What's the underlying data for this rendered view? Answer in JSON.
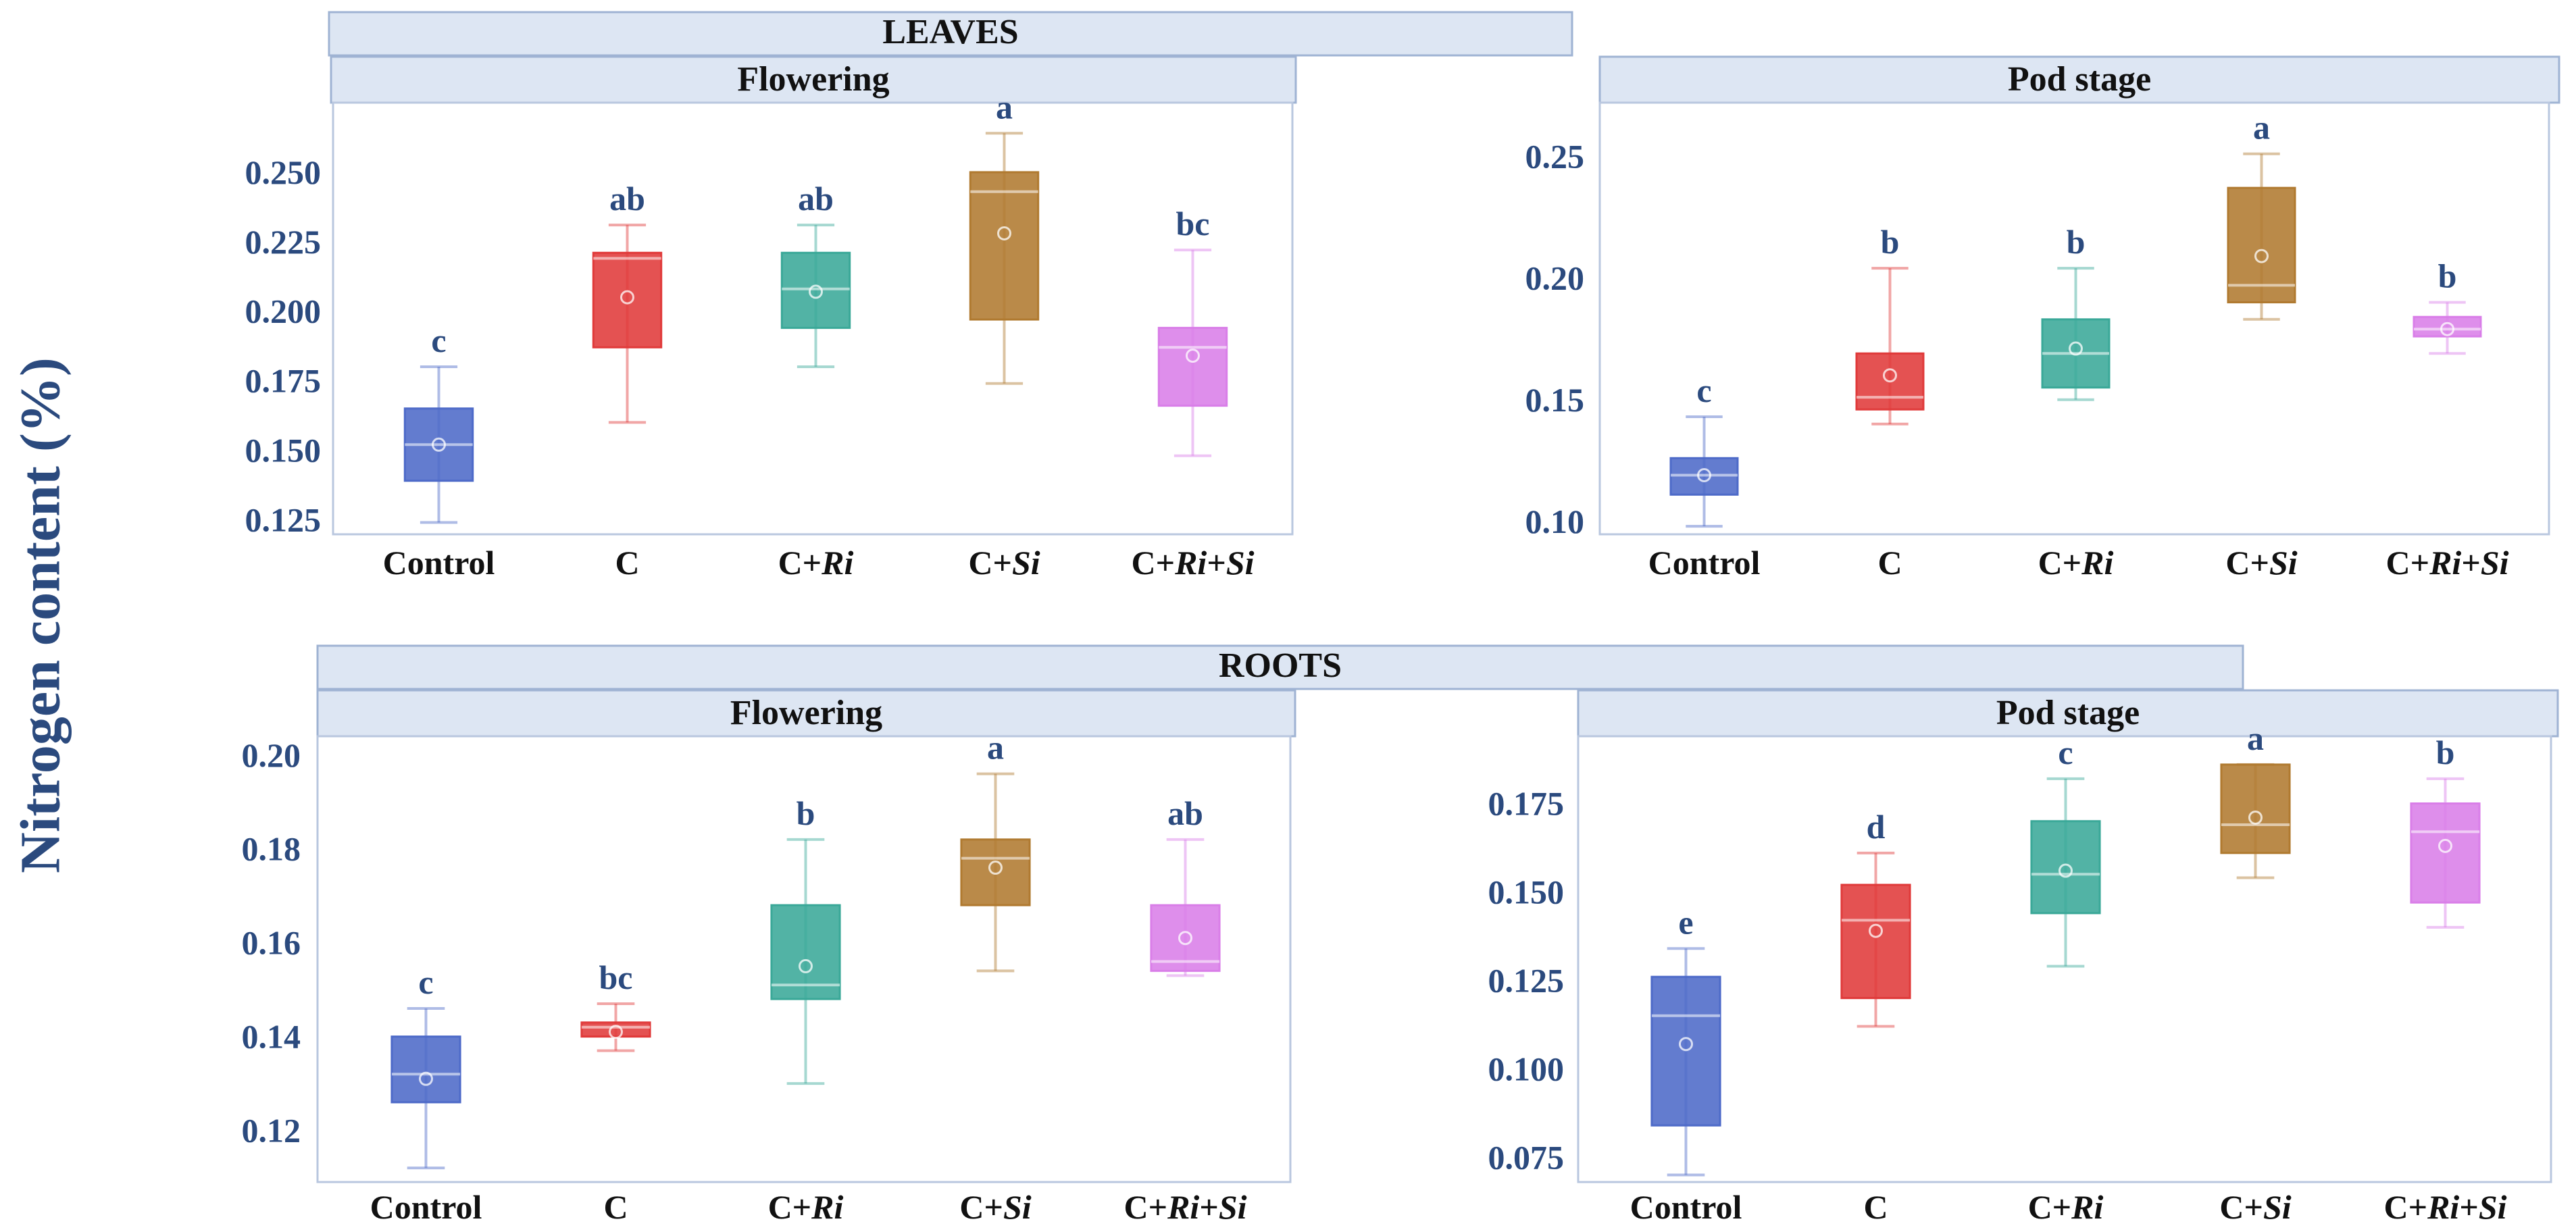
{
  "ylabel": "Nitrogen content (%)",
  "chart_data": [
    {
      "type": "box",
      "group": "LEAVES",
      "title": "Flowering",
      "categories": [
        "Control",
        "C",
        "C+Ri",
        "C+Si",
        "C+Ri+Si"
      ],
      "ylim": [
        0.12,
        0.275
      ],
      "yticks": [
        0.125,
        0.15,
        0.175,
        0.2,
        0.225,
        0.25
      ],
      "ytick_labels": [
        "0.125",
        "0.150",
        "0.175",
        "0.200",
        "0.225",
        "0.250"
      ],
      "boxes": [
        {
          "label": "Control",
          "min": 0.124,
          "q1": 0.139,
          "median": 0.152,
          "q3": 0.165,
          "max": 0.18,
          "mean": 0.152,
          "letter": "c",
          "color": "#4d6ac8"
        },
        {
          "label": "C",
          "min": 0.16,
          "q1": 0.187,
          "median": 0.219,
          "q3": 0.221,
          "max": 0.231,
          "mean": 0.205,
          "letter": "ab",
          "color": "#e03a3a"
        },
        {
          "label": "C+Ri",
          "min": 0.18,
          "q1": 0.194,
          "median": 0.208,
          "q3": 0.221,
          "max": 0.231,
          "mean": 0.207,
          "letter": "ab",
          "color": "#3aa898"
        },
        {
          "label": "C+Si",
          "min": 0.174,
          "q1": 0.197,
          "median": 0.243,
          "q3": 0.25,
          "max": 0.264,
          "mean": 0.228,
          "letter": "a",
          "color": "#b07a30"
        },
        {
          "label": "C+Ri+Si",
          "min": 0.148,
          "q1": 0.166,
          "median": 0.187,
          "q3": 0.194,
          "max": 0.222,
          "mean": 0.184,
          "letter": "bc",
          "color": "#d97ee8"
        }
      ]
    },
    {
      "type": "box",
      "group": "LEAVES",
      "title": "Pod stage",
      "categories": [
        "Control",
        "C",
        "C+Ri",
        "C+Si",
        "C+Ri+Si"
      ],
      "ylim": [
        0.095,
        0.272
      ],
      "yticks": [
        0.1,
        0.15,
        0.2,
        0.25
      ],
      "ytick_labels": [
        "0.10",
        "0.15",
        "0.20",
        "0.25"
      ],
      "boxes": [
        {
          "label": "Control",
          "min": 0.098,
          "q1": 0.111,
          "median": 0.119,
          "q3": 0.126,
          "max": 0.143,
          "mean": 0.119,
          "letter": "c",
          "color": "#4d6ac8"
        },
        {
          "label": "C",
          "min": 0.14,
          "q1": 0.146,
          "median": 0.151,
          "q3": 0.169,
          "max": 0.204,
          "mean": 0.16,
          "letter": "b",
          "color": "#e03a3a"
        },
        {
          "label": "C+Ri",
          "min": 0.15,
          "q1": 0.155,
          "median": 0.169,
          "q3": 0.183,
          "max": 0.204,
          "mean": 0.171,
          "letter": "b",
          "color": "#3aa898"
        },
        {
          "label": "C+Si",
          "min": 0.183,
          "q1": 0.19,
          "median": 0.197,
          "q3": 0.237,
          "max": 0.251,
          "mean": 0.209,
          "letter": "a",
          "color": "#b07a30"
        },
        {
          "label": "C+Ri+Si",
          "min": 0.169,
          "q1": 0.176,
          "median": 0.179,
          "q3": 0.184,
          "max": 0.19,
          "mean": 0.179,
          "letter": "b",
          "color": "#d97ee8"
        }
      ]
    },
    {
      "type": "box",
      "group": "ROOTS",
      "title": "Flowering",
      "categories": [
        "Control",
        "C",
        "C+Ri",
        "C+Si",
        "C+Ri+Si"
      ],
      "ylim": [
        0.109,
        0.204
      ],
      "yticks": [
        0.12,
        0.14,
        0.16,
        0.18,
        0.2
      ],
      "ytick_labels": [
        "0.12",
        "0.14",
        "0.16",
        "0.18",
        "0.20"
      ],
      "boxes": [
        {
          "label": "Control",
          "min": 0.112,
          "q1": 0.126,
          "median": 0.132,
          "q3": 0.14,
          "max": 0.146,
          "mean": 0.131,
          "letter": "c",
          "color": "#4d6ac8"
        },
        {
          "label": "C",
          "min": 0.137,
          "q1": 0.14,
          "median": 0.142,
          "q3": 0.143,
          "max": 0.147,
          "mean": 0.141,
          "letter": "bc",
          "color": "#e03a3a"
        },
        {
          "label": "C+Ri",
          "min": 0.13,
          "q1": 0.148,
          "median": 0.151,
          "q3": 0.168,
          "max": 0.182,
          "mean": 0.155,
          "letter": "b",
          "color": "#3aa898"
        },
        {
          "label": "C+Si",
          "min": 0.154,
          "q1": 0.168,
          "median": 0.178,
          "q3": 0.182,
          "max": 0.196,
          "mean": 0.176,
          "letter": "a",
          "color": "#b07a30"
        },
        {
          "label": "C+Ri+Si",
          "min": 0.153,
          "q1": 0.154,
          "median": 0.156,
          "q3": 0.168,
          "max": 0.182,
          "mean": 0.161,
          "letter": "ab",
          "color": "#d97ee8"
        }
      ]
    },
    {
      "type": "box",
      "group": "ROOTS",
      "title": "Pod stage",
      "categories": [
        "Control",
        "C",
        "C+Ri",
        "C+Si",
        "C+Ri+Si"
      ],
      "ylim": [
        0.068,
        0.194
      ],
      "yticks": [
        0.075,
        0.1,
        0.125,
        0.15,
        0.175
      ],
      "ytick_labels": [
        "0.075",
        "0.100",
        "0.125",
        "0.150",
        "0.175"
      ],
      "boxes": [
        {
          "label": "Control",
          "min": 0.07,
          "q1": 0.084,
          "median": 0.115,
          "q3": 0.126,
          "max": 0.134,
          "mean": 0.107,
          "letter": "e",
          "color": "#4d6ac8"
        },
        {
          "label": "C",
          "min": 0.112,
          "q1": 0.12,
          "median": 0.142,
          "q3": 0.152,
          "max": 0.161,
          "mean": 0.139,
          "letter": "d",
          "color": "#e03a3a"
        },
        {
          "label": "C+Ri",
          "min": 0.129,
          "q1": 0.144,
          "median": 0.155,
          "q3": 0.17,
          "max": 0.182,
          "mean": 0.156,
          "letter": "c",
          "color": "#3aa898"
        },
        {
          "label": "C+Si",
          "min": 0.154,
          "q1": 0.161,
          "median": 0.169,
          "q3": 0.186,
          "max": 0.186,
          "mean": 0.171,
          "letter": "a",
          "color": "#b07a30"
        },
        {
          "label": "C+Ri+Si",
          "min": 0.14,
          "q1": 0.147,
          "median": 0.167,
          "q3": 0.175,
          "max": 0.182,
          "mean": 0.163,
          "letter": "b",
          "color": "#d97ee8"
        }
      ]
    }
  ]
}
